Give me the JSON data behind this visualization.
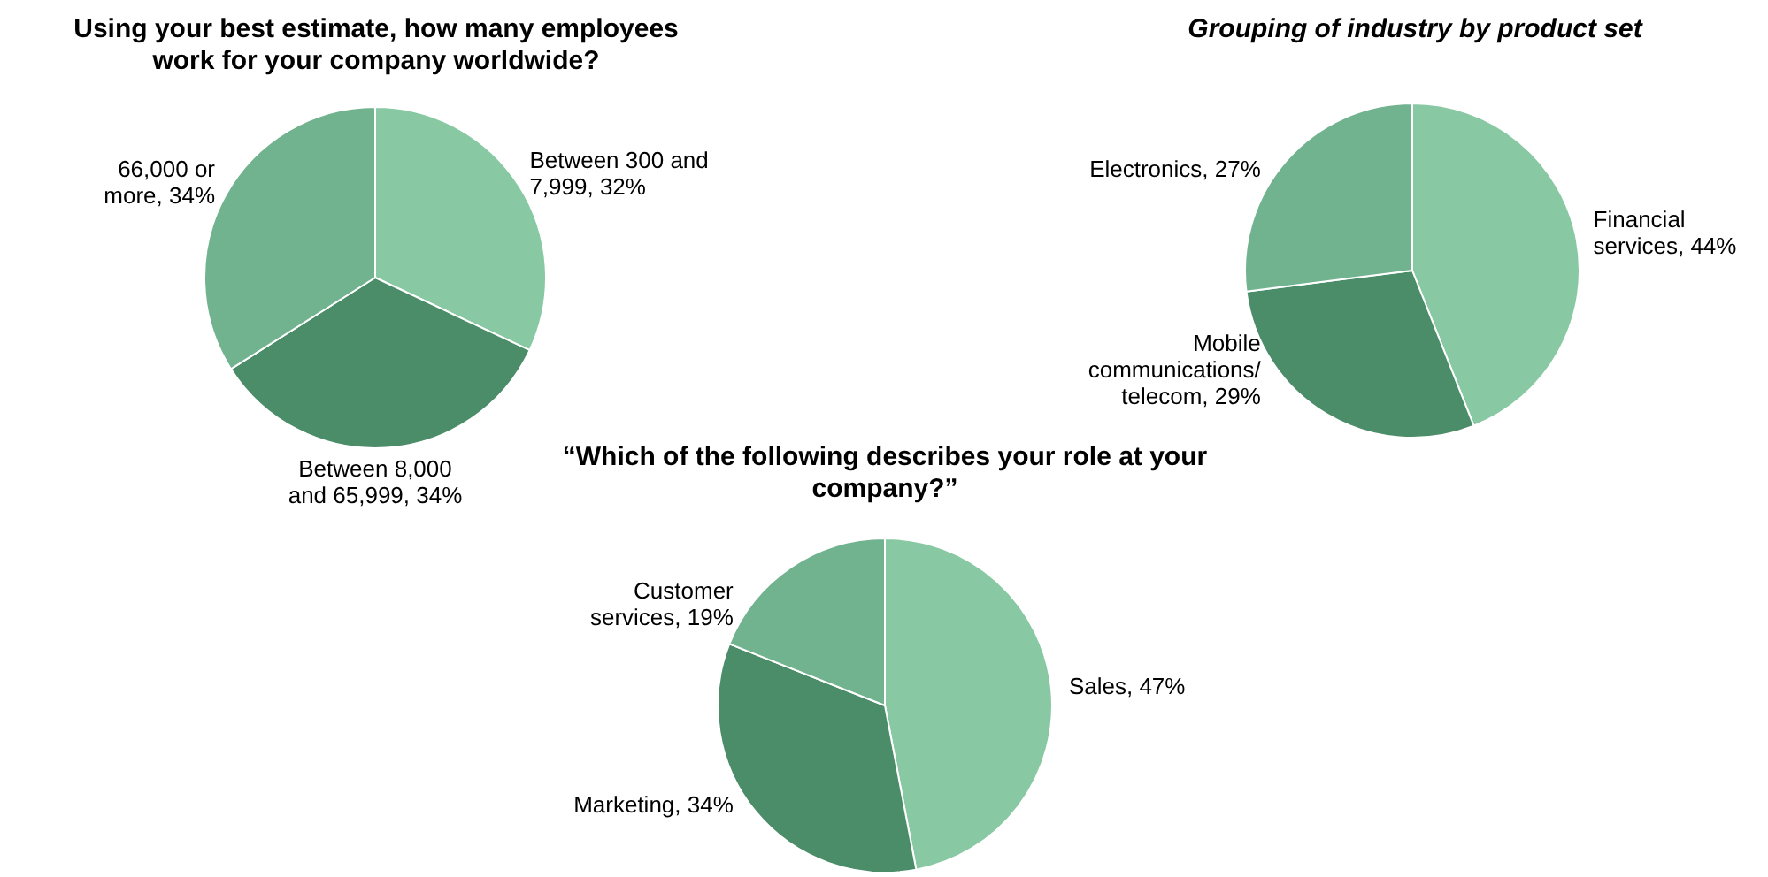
{
  "chart_data": [
    {
      "type": "pie",
      "title": "Using your best estimate, how many employees work for your company worldwide?",
      "categories": [
        "Between 300 and 7,999",
        "Between 8,000 and 65,999",
        "66,000 or more"
      ],
      "values": [
        32,
        34,
        34
      ],
      "value_labels": [
        "32%",
        "34%",
        "34%"
      ],
      "colors": [
        "#88c9a3",
        "#4b8c69",
        "#72b38f"
      ],
      "legend": false
    },
    {
      "type": "pie",
      "title": "Grouping of industry by product set",
      "categories": [
        "Financial services",
        "Mobile communications/ telecom",
        "Electronics"
      ],
      "values": [
        44,
        29,
        27
      ],
      "value_labels": [
        "44%",
        "29%",
        "27%"
      ],
      "colors": [
        "#88c9a3",
        "#4b8c69",
        "#72b38f"
      ],
      "legend": false
    },
    {
      "type": "pie",
      "title": "“Which of the following describes your role at your company?”",
      "categories": [
        "Sales",
        "Marketing",
        "Customer services"
      ],
      "values": [
        47,
        34,
        19
      ],
      "value_labels": [
        "47%",
        "34%",
        "19%"
      ],
      "colors": [
        "#88c9a3",
        "#4b8c69",
        "#72b38f"
      ],
      "legend": false
    }
  ]
}
